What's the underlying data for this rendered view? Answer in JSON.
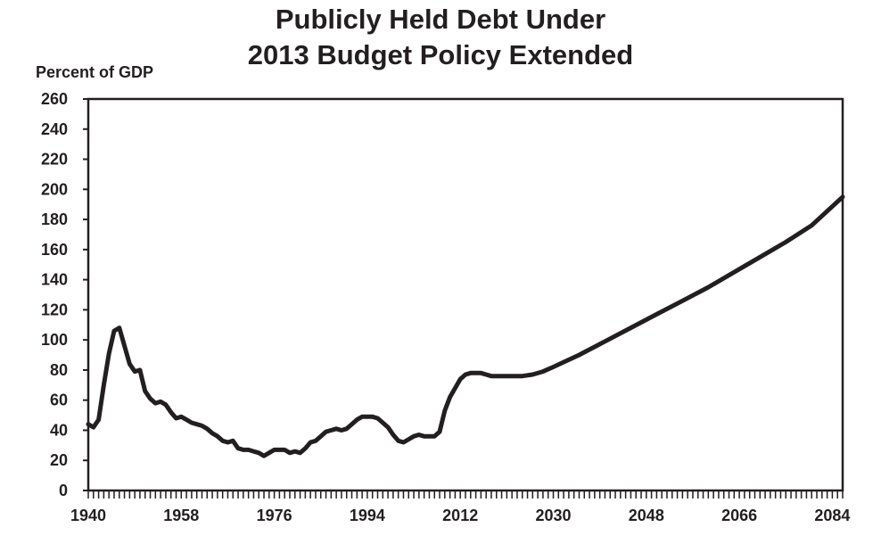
{
  "chart_data": {
    "type": "line",
    "title": [
      "Publicly Held Debt Under",
      "2013 Budget Policy Extended"
    ],
    "ylabel": "Percent of GDP",
    "xlabel": "",
    "xlim": [
      1940,
      2086
    ],
    "ylim": [
      0,
      260
    ],
    "yticks": [
      0,
      20,
      40,
      60,
      80,
      100,
      120,
      140,
      160,
      180,
      200,
      220,
      240,
      260
    ],
    "xticks": [
      1940,
      1958,
      1976,
      1994,
      2012,
      2030,
      2048,
      2066,
      2084
    ],
    "grid": false,
    "line_color": "#231f20",
    "series": [
      {
        "x": [
          1940,
          1941,
          1942,
          1943,
          1944,
          1945,
          1946,
          1947,
          1948,
          1949,
          1950,
          1951,
          1952,
          1953,
          1954,
          1955,
          1956,
          1957,
          1958,
          1959,
          1960,
          1961,
          1962,
          1963,
          1964,
          1965,
          1966,
          1967,
          1968,
          1969,
          1970,
          1971,
          1972,
          1973,
          1974,
          1975,
          1976,
          1977,
          1978,
          1979,
          1980,
          1981,
          1982,
          1983,
          1984,
          1985,
          1986,
          1987,
          1988,
          1989,
          1990,
          1991,
          1992,
          1993,
          1994,
          1995,
          1996,
          1997,
          1998,
          1999,
          2000,
          2001,
          2002,
          2003,
          2004,
          2005,
          2006,
          2007,
          2008,
          2009,
          2010,
          2011,
          2012,
          2013,
          2014,
          2015,
          2016,
          2017,
          2018,
          2019,
          2020,
          2022,
          2024,
          2026,
          2028,
          2030,
          2035,
          2040,
          2045,
          2050,
          2055,
          2060,
          2065,
          2070,
          2075,
          2080,
          2086
        ],
        "values": [
          44,
          42,
          47,
          70,
          91,
          106,
          108,
          96,
          84,
          79,
          80,
          66,
          61,
          58,
          59,
          57,
          52,
          48,
          49,
          47,
          45,
          44,
          43,
          41,
          38,
          36,
          33,
          32,
          33,
          28,
          27,
          27,
          26,
          25,
          23,
          25,
          27,
          27,
          27,
          25,
          26,
          25,
          28,
          32,
          33,
          36,
          39,
          40,
          41,
          40,
          41,
          44,
          47,
          49,
          49,
          49,
          48,
          45,
          42,
          37,
          33,
          32,
          34,
          36,
          37,
          36,
          36,
          36,
          39,
          53,
          62,
          68,
          74,
          77,
          78,
          78,
          78,
          77,
          76,
          76,
          76,
          76,
          76,
          77,
          79,
          82,
          90,
          99,
          108,
          117,
          126,
          135,
          145,
          155,
          165,
          176,
          195
        ]
      }
    ]
  }
}
